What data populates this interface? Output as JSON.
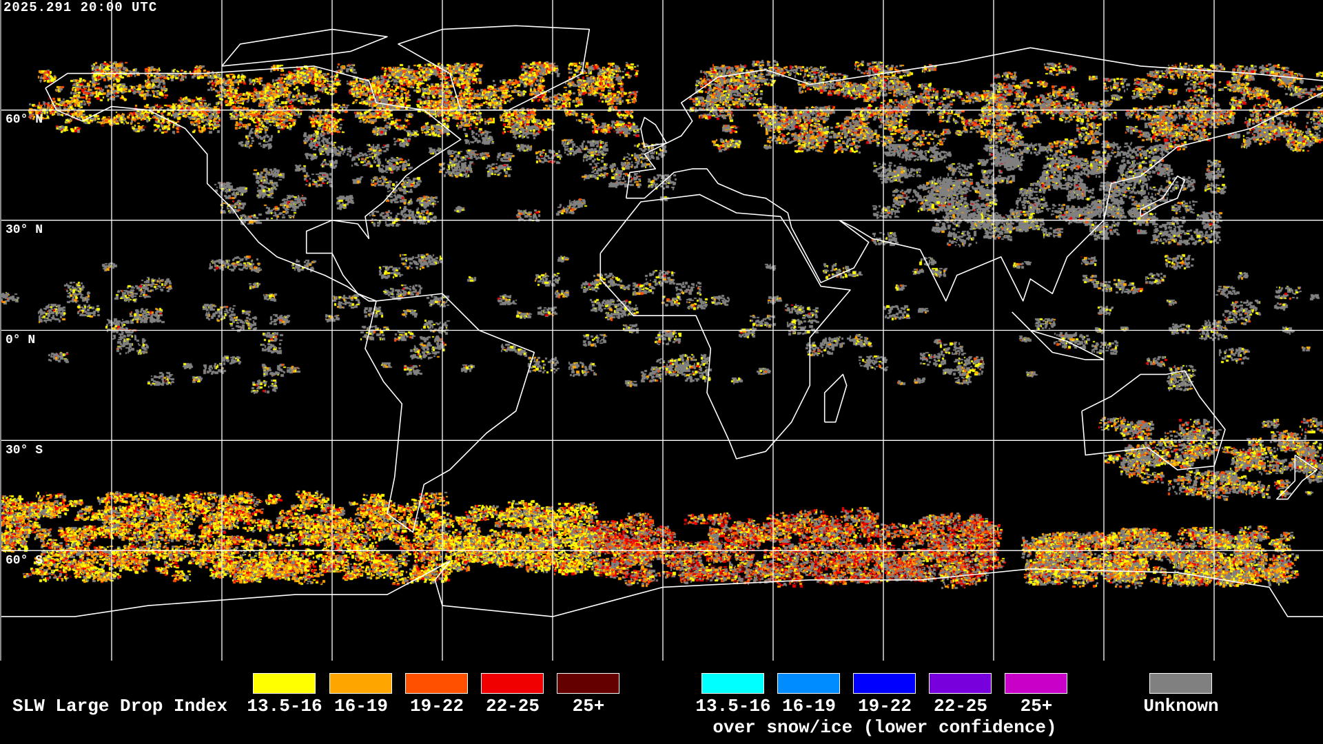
{
  "header": {
    "timestamp": "2025.291 20:00 UTC"
  },
  "map": {
    "projection": "equirectangular",
    "lon_range": [
      -180,
      180
    ],
    "lat_range": [
      -90,
      90
    ],
    "grid_spacing_deg": 30,
    "lat_labels": [
      "60° N",
      "30° N",
      "0° N",
      "30° S",
      "60° S"
    ],
    "background_color": "#000000",
    "coastline_color": "#ffffff",
    "grid_color": "#ffffff"
  },
  "legend": {
    "title": "SLW Large Drop Index",
    "categories": [
      {
        "label": "13.5-16",
        "color": "#ffff00"
      },
      {
        "label": "16-19",
        "color": "#ffa500"
      },
      {
        "label": "19-22",
        "color": "#ff5000"
      },
      {
        "label": "22-25",
        "color": "#f00000"
      },
      {
        "label": "25+",
        "color": "#640000"
      }
    ],
    "snow_ice_categories": [
      {
        "label": "13.5-16",
        "color": "#00ffff"
      },
      {
        "label": "16-19",
        "color": "#008cff"
      },
      {
        "label": "19-22",
        "color": "#0000ff"
      },
      {
        "label": "22-25",
        "color": "#7800dc"
      },
      {
        "label": "25+",
        "color": "#c800c8"
      }
    ],
    "snow_ice_caption": "over snow/ice (lower confidence)",
    "unknown": {
      "label": "Unknown",
      "color": "#808080"
    }
  }
}
